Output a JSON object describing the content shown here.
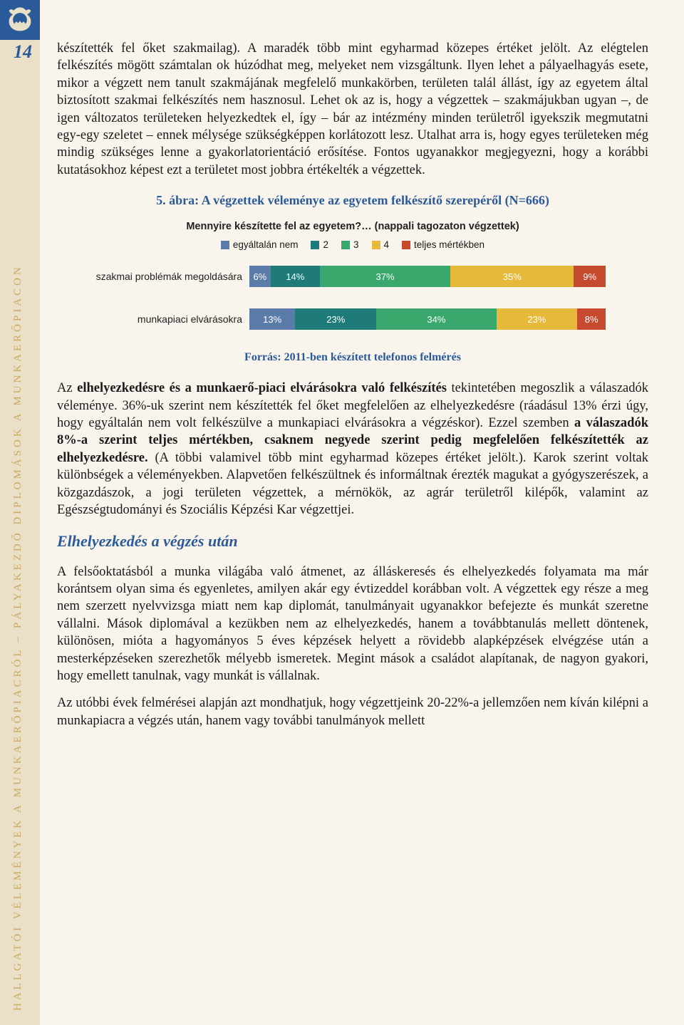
{
  "page_number": "14",
  "vertical_title": "Hallgatói vélemények a munkaerőpiacról – pályakezdő diplomások a munkaerőpiacon",
  "para1": "készítették fel őket szakmailag). A maradék több mint egyharmad közepes értéket jelölt. Az elégtelen felkészítés mögött számtalan ok húzódhat meg, melyeket nem vizsgáltunk. Ilyen lehet a pályaelhagyás esete, mikor a végzett nem tanult szakmájának megfelelő munkakörben, területen talál állást, így az egyetem által biztosított szakmai felkészítés nem hasznosul. Lehet ok az is, hogy a végzettek – szakmájukban ugyan –, de igen változatos területeken helyezkedtek el, így – bár az intézmény minden területről igyekszik megmutatni egy-egy szeletet – ennek mélysége szükségképpen korlátozott lesz. Utalhat arra is, hogy egyes területeken még mindig szükséges lenne a gyakorlatorientáció erősítése. Fontos ugyanakkor megjegyezni, hogy a korábbi kutatásokhoz képest ezt a területet most jobbra értékelték a végzettek.",
  "chart_caption": "5. ábra: A végzettek véleménye az egyetem felkészítő szerepéről (N=666)",
  "chart": {
    "type": "bar",
    "title": "Mennyire készítette fel az egyetem?… (nappali tagozaton végzettek)",
    "legend": [
      {
        "label": "egyáltalán nem",
        "color": "#5b7ba8"
      },
      {
        "label": "2",
        "color": "#1f7a7a"
      },
      {
        "label": "3",
        "color": "#3aa76d"
      },
      {
        "label": "4",
        "color": "#e7b93a"
      },
      {
        "label": "teljes mértékben",
        "color": "#c74a2f"
      }
    ],
    "rows": [
      {
        "label": "szakmai problémák megoldására",
        "segments": [
          {
            "pct": 6,
            "text": "6%",
            "color": "#5b7ba8"
          },
          {
            "pct": 14,
            "text": "14%",
            "color": "#1f7a7a"
          },
          {
            "pct": 37,
            "text": "37%",
            "color": "#3aa76d"
          },
          {
            "pct": 35,
            "text": "35%",
            "color": "#e7b93a"
          },
          {
            "pct": 9,
            "text": "9%",
            "color": "#c74a2f"
          }
        ]
      },
      {
        "label": "munkapiaci elvárásokra",
        "segments": [
          {
            "pct": 13,
            "text": "13%",
            "color": "#5b7ba8"
          },
          {
            "pct": 23,
            "text": "23%",
            "color": "#1f7a7a"
          },
          {
            "pct": 34,
            "text": "34%",
            "color": "#3aa76d"
          },
          {
            "pct": 23,
            "text": "23%",
            "color": "#e7b93a"
          },
          {
            "pct": 8,
            "text": "8%",
            "color": "#c74a2f"
          }
        ]
      }
    ]
  },
  "source": "Forrás: 2011-ben készített telefonos felmérés",
  "para2_pre": "Az ",
  "para2_b1": "elhelyezkedésre és a munkaerő-piaci elvárásokra való felkészítés",
  "para2_mid1": " tekintetében megoszlik a válaszadók véleménye. 36%-uk szerint nem készítették fel őket megfelelően az elhelyezkedésre (ráadásul 13% érzi úgy, hogy egyáltalán nem volt felkészülve a munkapiaci elvárásokra a végzéskor). Ezzel szemben ",
  "para2_b2": "a válaszadók 8%-a szerint teljes mértékben, csaknem negyede szerint pedig megfelelően felkészítették az elhelyezkedésre.",
  "para2_end": " (A többi valamivel több mint egyharmad közepes értéket jelölt.). Karok szerint voltak különbségek a véleményekben. Alapvetően felkészültnek és informáltnak érezték magukat a gyógyszerészek, a közgazdászok, a jogi területen végzettek, a mérnökök, az agrár területről kilépők, valamint az Egészségtudományi és Szociális Képzési Kar végzettjei.",
  "section_heading": "Elhelyezkedés a végzés után",
  "para3": "A felsőoktatásból a munka világába való átmenet, az álláskeresés és elhelyezkedés folyamata ma már korántsem olyan sima és egyenletes, amilyen akár egy évtizeddel korábban volt. A végzettek egy része a meg nem szerzett nyelvvizsga miatt nem kap diplomát, tanulmányait ugyanakkor befejezte és munkát szeretne vállalni. Mások diplomával a kezükben nem az elhelyezkedés, hanem a továbbtanulás mellett döntenek, különösen, mióta a hagyományos 5 éves képzések helyett a rövidebb alapképzések elvégzése után a mesterképzéseken szerezhetők mélyebb ismeretek. Megint mások a családot alapítanak, de nagyon gyakori, hogy emellett tanulnak, vagy munkát is vállalnak.",
  "para4": "Az utóbbi évek felmérései alapján azt mondhatjuk, hogy végzettjeink 20-22%-a jellemzően nem kíván kilépni a munkapiacra a végzés után, hanem vagy további tanulmányok mellett"
}
